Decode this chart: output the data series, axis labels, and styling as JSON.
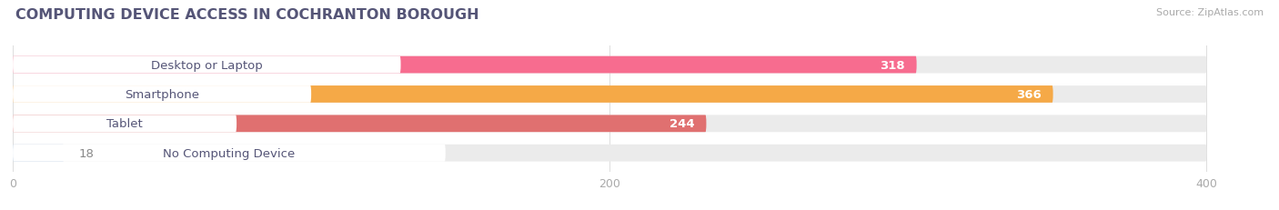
{
  "title": "COMPUTING DEVICE ACCESS IN COCHRANTON BOROUGH",
  "source": "Source: ZipAtlas.com",
  "categories": [
    "Desktop or Laptop",
    "Smartphone",
    "Tablet",
    "No Computing Device"
  ],
  "values": [
    318,
    366,
    244,
    18
  ],
  "bar_colors": [
    "#f76c8f",
    "#f5a947",
    "#e07070",
    "#aac4e0"
  ],
  "bar_bg_color": "#ebebeb",
  "xlim_max": 420,
  "xticks": [
    0,
    200,
    400
  ],
  "label_fontsize": 9.5,
  "value_fontsize": 9.5,
  "title_fontsize": 11.5,
  "bar_height": 0.58,
  "background_color": "#ffffff",
  "label_color": "#555577",
  "title_color": "#555577"
}
